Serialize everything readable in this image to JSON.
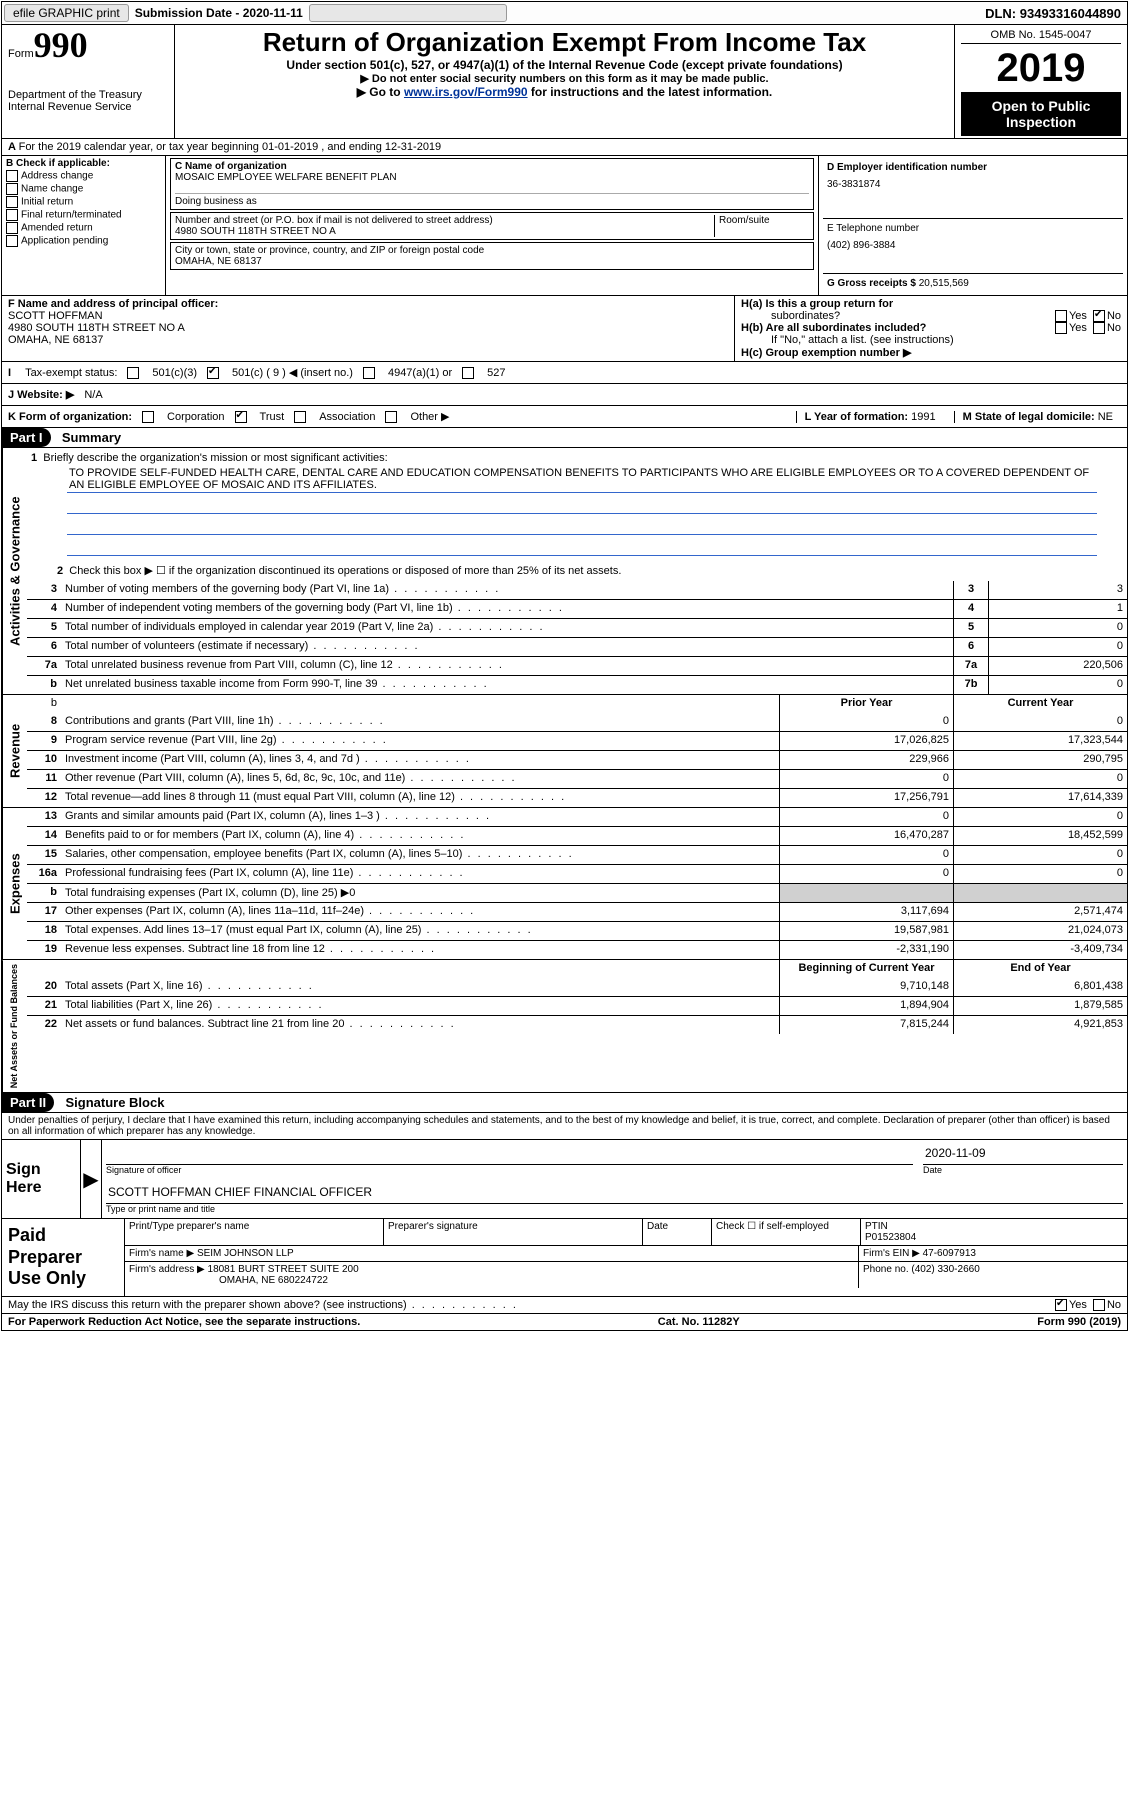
{
  "topbar": {
    "efile": "efile GRAPHIC print",
    "submission_lbl": "Submission Date - ",
    "submission_date": "2020-11-11",
    "dln_lbl": "DLN: ",
    "dln": "93493316044890"
  },
  "head": {
    "form_word": "Form",
    "form_no": "990",
    "dept": "Department of the Treasury",
    "irs": "Internal Revenue Service",
    "title": "Return of Organization Exempt From Income Tax",
    "subtitle": "Under section 501(c), 527, or 4947(a)(1) of the Internal Revenue Code (except private foundations)",
    "ssn": "▶ Do not enter social security numbers on this form as it may be made public.",
    "goto_pre": "▶ Go to ",
    "goto_link": "www.irs.gov/Form990",
    "goto_post": " for instructions and the latest information.",
    "omb": "OMB No. 1545-0047",
    "year": "2019",
    "open1": "Open to Public",
    "open2": "Inspection"
  },
  "A_line": "For the 2019 calendar year, or tax year beginning 01-01-2019    , and ending 12-31-2019",
  "B": {
    "hdr": "B Check if applicable:",
    "items": [
      "Address change",
      "Name change",
      "Initial return",
      "Final return/terminated",
      "Amended return",
      "Application pending"
    ]
  },
  "C": {
    "name_lbl": "C Name of organization",
    "name": "MOSAIC EMPLOYEE WELFARE BENEFIT PLAN",
    "dba_lbl": "Doing business as",
    "dba": "",
    "addr_lbl": "Number and street (or P.O. box if mail is not delivered to street address)",
    "room_lbl": "Room/suite",
    "addr": "4980 SOUTH 118TH STREET NO A",
    "city_lbl": "City or town, state or province, country, and ZIP or foreign postal code",
    "city": "OMAHA, NE  68137"
  },
  "D": {
    "lbl": "D Employer identification number",
    "val": "36-3831874"
  },
  "E": {
    "lbl": "E Telephone number",
    "val": "(402) 896-3884"
  },
  "G": {
    "lbl": "G Gross receipts $ ",
    "val": "20,515,569"
  },
  "F": {
    "lbl": "F  Name and address of principal officer:",
    "name": "SCOTT HOFFMAN",
    "addr1": "4980 SOUTH 118TH STREET NO A",
    "addr2": "OMAHA, NE  68137"
  },
  "H": {
    "ha": "H(a)  Is this a group return for",
    "ha2": "subordinates?",
    "hb": "H(b)  Are all subordinates included?",
    "hno": "If \"No,\" attach a list. (see instructions)",
    "hc": "H(c)  Group exemption number ▶",
    "ha_answer": "No"
  },
  "I": {
    "lbl": "Tax-exempt status:",
    "opts": [
      "501(c)(3)",
      "501(c) ( 9 ) ◀ (insert no.)",
      "4947(a)(1) or",
      "527"
    ],
    "checked_index": 1
  },
  "J": {
    "lbl": "J   Website: ▶",
    "val": "N/A"
  },
  "K": {
    "lbl": "K Form of organization:",
    "opts": [
      "Corporation",
      "Trust",
      "Association",
      "Other ▶"
    ],
    "checked_index": 1
  },
  "L": {
    "lbl": "L Year of formation: ",
    "val": "1991"
  },
  "M": {
    "lbl": "M State of legal domicile: ",
    "val": "NE"
  },
  "partI": {
    "tag": "Part I",
    "title": "Summary"
  },
  "mission_lbl": "1  Briefly describe the organization's mission or most significant activities:",
  "mission": "TO PROVIDE SELF-FUNDED HEALTH CARE, DENTAL CARE AND EDUCATION COMPENSATION BENEFITS TO PARTICIPANTS WHO ARE ELIGIBLE EMPLOYEES OR TO A COVERED DEPENDENT OF AN ELIGIBLE EMPLOYEE OF MOSAIC AND ITS AFFILIATES.",
  "line2": "Check this box ▶ ☐  if the organization discontinued its operations or disposed of more than 25% of its net assets.",
  "sections": {
    "gov": "Activities & Governance",
    "rev": "Revenue",
    "exp": "Expenses",
    "net": "Net Assets or Fund Balances"
  },
  "gov_rows": [
    {
      "n": "3",
      "d": "Number of voting members of the governing body (Part VI, line 1a)",
      "box": "3",
      "v": "3"
    },
    {
      "n": "4",
      "d": "Number of independent voting members of the governing body (Part VI, line 1b)",
      "box": "4",
      "v": "1"
    },
    {
      "n": "5",
      "d": "Total number of individuals employed in calendar year 2019 (Part V, line 2a)",
      "box": "5",
      "v": "0"
    },
    {
      "n": "6",
      "d": "Total number of volunteers (estimate if necessary)",
      "box": "6",
      "v": "0"
    },
    {
      "n": "7a",
      "d": "Total unrelated business revenue from Part VIII, column (C), line 12",
      "box": "7a",
      "v": "220,506"
    },
    {
      "n": "b",
      "d": "Net unrelated business taxable income from Form 990-T, line 39",
      "box": "7b",
      "v": "0"
    }
  ],
  "colheads": {
    "prior": "Prior Year",
    "current": "Current Year"
  },
  "rev_rows": [
    {
      "n": "8",
      "d": "Contributions and grants (Part VIII, line 1h)",
      "p": "0",
      "c": "0"
    },
    {
      "n": "9",
      "d": "Program service revenue (Part VIII, line 2g)",
      "p": "17,026,825",
      "c": "17,323,544"
    },
    {
      "n": "10",
      "d": "Investment income (Part VIII, column (A), lines 3, 4, and 7d )",
      "p": "229,966",
      "c": "290,795"
    },
    {
      "n": "11",
      "d": "Other revenue (Part VIII, column (A), lines 5, 6d, 8c, 9c, 10c, and 11e)",
      "p": "0",
      "c": "0"
    },
    {
      "n": "12",
      "d": "Total revenue—add lines 8 through 11 (must equal Part VIII, column (A), line 12)",
      "p": "17,256,791",
      "c": "17,614,339"
    }
  ],
  "exp_rows": [
    {
      "n": "13",
      "d": "Grants and similar amounts paid (Part IX, column (A), lines 1–3 )",
      "p": "0",
      "c": "0"
    },
    {
      "n": "14",
      "d": "Benefits paid to or for members (Part IX, column (A), line 4)",
      "p": "16,470,287",
      "c": "18,452,599"
    },
    {
      "n": "15",
      "d": "Salaries, other compensation, employee benefits (Part IX, column (A), lines 5–10)",
      "p": "0",
      "c": "0"
    },
    {
      "n": "16a",
      "d": "Professional fundraising fees (Part IX, column (A), line 11e)",
      "p": "0",
      "c": "0"
    },
    {
      "n": "b",
      "d": "Total fundraising expenses (Part IX, column (D), line 25) ▶0",
      "p": "GRAY",
      "c": "GRAY"
    },
    {
      "n": "17",
      "d": "Other expenses (Part IX, column (A), lines 11a–11d, 11f–24e)",
      "p": "3,117,694",
      "c": "2,571,474"
    },
    {
      "n": "18",
      "d": "Total expenses. Add lines 13–17 (must equal Part IX, column (A), line 25)",
      "p": "19,587,981",
      "c": "21,024,073"
    },
    {
      "n": "19",
      "d": "Revenue less expenses. Subtract line 18 from line 12",
      "p": "-2,331,190",
      "c": "-3,409,734"
    }
  ],
  "net_heads": {
    "b": "Beginning of Current Year",
    "e": "End of Year"
  },
  "net_rows": [
    {
      "n": "20",
      "d": "Total assets (Part X, line 16)",
      "p": "9,710,148",
      "c": "6,801,438"
    },
    {
      "n": "21",
      "d": "Total liabilities (Part X, line 26)",
      "p": "1,894,904",
      "c": "1,879,585"
    },
    {
      "n": "22",
      "d": "Net assets or fund balances. Subtract line 21 from line 20",
      "p": "7,815,244",
      "c": "4,921,853"
    }
  ],
  "partII": {
    "tag": "Part II",
    "title": "Signature Block"
  },
  "penalty": "Under penalties of perjury, I declare that I have examined this return, including accompanying schedules and statements, and to the best of my knowledge and belief, it is true, correct, and complete. Declaration of preparer (other than officer) is based on all information of which preparer has any knowledge.",
  "sign": {
    "here": "Sign Here",
    "sig_of": "Signature of officer",
    "date_lbl": "Date",
    "date": "2020-11-09",
    "name": "SCOTT HOFFMAN  CHIEF FINANCIAL OFFICER",
    "type_lbl": "Type or print name and title"
  },
  "prep": {
    "lbl": "Paid Preparer Use Only",
    "r1": {
      "c1": "Print/Type preparer's name",
      "c2": "Preparer's signature",
      "c3": "Date",
      "c4": "Check ☐ if self-employed",
      "c5_lbl": "PTIN",
      "c5": "P01523804"
    },
    "r2": {
      "c1": "Firm's name     ▶ SEIM JOHNSON LLP",
      "c2": "Firm's EIN ▶ 47-6097913"
    },
    "r3": {
      "c1": "Firm's address ▶ 18081 BURT STREET SUITE 200",
      "c2": "Phone no. (402) 330-2660"
    },
    "r3b": "OMAHA, NE  680224722"
  },
  "discuss": "May the IRS discuss this return with the preparer shown above? (see instructions)",
  "discuss_answer": "Yes",
  "foot": {
    "left": "For Paperwork Reduction Act Notice, see the separate instructions.",
    "mid": "Cat. No. 11282Y",
    "right": "Form 990 (2019)"
  },
  "colors": {
    "link": "#003399",
    "line_blue": "#3366cc"
  }
}
